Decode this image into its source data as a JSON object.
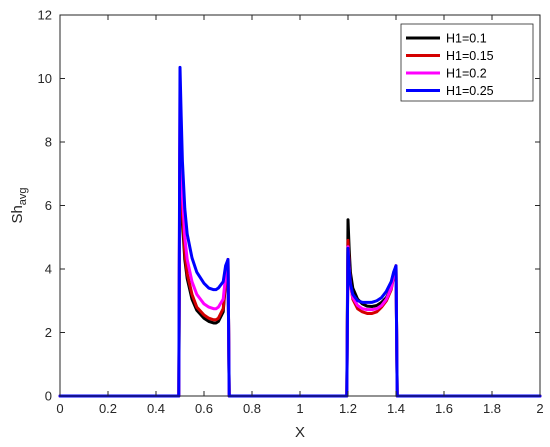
{
  "chart_data": {
    "type": "line",
    "title": "",
    "xlabel": "X",
    "ylabel": {
      "base": "Sh",
      "sub": "avg"
    },
    "xlim": [
      0,
      2
    ],
    "ylim": [
      0,
      12
    ],
    "xticks": [
      0,
      0.2,
      0.4,
      0.6,
      0.8,
      1,
      1.2,
      1.4,
      1.6,
      1.8,
      2
    ],
    "xtick_labels": [
      "0",
      "0.2",
      "0.4",
      "0.6",
      "0.8",
      "1",
      "1.2",
      "1.4",
      "1.6",
      "1.8",
      "2"
    ],
    "yticks": [
      0,
      2,
      4,
      6,
      8,
      10,
      12
    ],
    "ytick_labels": [
      "0",
      "2",
      "4",
      "6",
      "8",
      "10",
      "12"
    ],
    "grid": false,
    "legend_position": "top-right",
    "series": [
      {
        "name": "H1=0.1",
        "color": "#000000",
        "x": [
          0,
          0.49,
          0.495,
          0.5,
          0.505,
          0.51,
          0.52,
          0.53,
          0.55,
          0.57,
          0.6,
          0.62,
          0.64,
          0.65,
          0.66,
          0.68,
          0.69,
          0.7,
          0.705,
          0.71,
          1.19,
          1.195,
          1.2,
          1.205,
          1.21,
          1.22,
          1.24,
          1.26,
          1.28,
          1.3,
          1.32,
          1.34,
          1.36,
          1.38,
          1.39,
          1.4,
          1.405,
          1.41,
          2
        ],
        "y": [
          0,
          0,
          0,
          8.0,
          6.7,
          5.5,
          4.3,
          3.7,
          3.05,
          2.7,
          2.45,
          2.35,
          2.3,
          2.3,
          2.35,
          2.65,
          3.6,
          4.3,
          0,
          0,
          0,
          0,
          5.55,
          4.6,
          3.9,
          3.4,
          3.05,
          2.9,
          2.83,
          2.82,
          2.85,
          2.95,
          3.1,
          3.4,
          3.8,
          4.1,
          0,
          0,
          0
        ]
      },
      {
        "name": "H1=0.15",
        "color": "#d40000",
        "x": [
          0,
          0.49,
          0.495,
          0.5,
          0.505,
          0.51,
          0.52,
          0.53,
          0.55,
          0.57,
          0.6,
          0.62,
          0.64,
          0.65,
          0.66,
          0.68,
          0.69,
          0.7,
          0.705,
          0.71,
          1.19,
          1.195,
          1.2,
          1.205,
          1.21,
          1.22,
          1.24,
          1.26,
          1.28,
          1.3,
          1.32,
          1.34,
          1.36,
          1.38,
          1.39,
          1.4,
          1.405,
          1.41,
          2
        ],
        "y": [
          0,
          0,
          0,
          8.6,
          7.0,
          5.8,
          4.5,
          3.85,
          3.2,
          2.8,
          2.55,
          2.45,
          2.4,
          2.4,
          2.45,
          2.75,
          3.65,
          4.3,
          0,
          0,
          0,
          0,
          4.9,
          4.1,
          3.55,
          3.05,
          2.75,
          2.65,
          2.6,
          2.6,
          2.65,
          2.8,
          3.0,
          3.35,
          3.75,
          4.1,
          0,
          0,
          0
        ]
      },
      {
        "name": "H1=0.2",
        "color": "#ff00ff",
        "x": [
          0,
          0.49,
          0.495,
          0.5,
          0.505,
          0.51,
          0.52,
          0.53,
          0.55,
          0.57,
          0.6,
          0.62,
          0.64,
          0.65,
          0.66,
          0.68,
          0.69,
          0.7,
          0.705,
          0.71,
          1.19,
          1.195,
          1.2,
          1.205,
          1.21,
          1.22,
          1.24,
          1.26,
          1.28,
          1.3,
          1.32,
          1.34,
          1.36,
          1.38,
          1.39,
          1.4,
          1.405,
          1.41,
          2
        ],
        "y": [
          0,
          0,
          0,
          9.6,
          7.8,
          6.4,
          5.0,
          4.3,
          3.6,
          3.2,
          2.9,
          2.8,
          2.75,
          2.75,
          2.8,
          3.05,
          3.8,
          4.3,
          0,
          0,
          0,
          0,
          4.7,
          4.0,
          3.5,
          3.1,
          2.85,
          2.75,
          2.72,
          2.72,
          2.75,
          2.85,
          3.05,
          3.4,
          3.8,
          4.1,
          0,
          0,
          0
        ]
      },
      {
        "name": "H1=0.25",
        "color": "#0000ff",
        "x": [
          0,
          0.49,
          0.495,
          0.5,
          0.505,
          0.51,
          0.52,
          0.53,
          0.55,
          0.57,
          0.6,
          0.62,
          0.64,
          0.65,
          0.66,
          0.68,
          0.69,
          0.7,
          0.705,
          0.71,
          1.19,
          1.195,
          1.2,
          1.205,
          1.21,
          1.22,
          1.24,
          1.26,
          1.28,
          1.3,
          1.32,
          1.34,
          1.36,
          1.38,
          1.39,
          1.4,
          1.405,
          1.41,
          2
        ],
        "y": [
          0,
          0,
          0,
          10.35,
          8.8,
          7.4,
          5.9,
          5.1,
          4.35,
          3.9,
          3.55,
          3.4,
          3.35,
          3.35,
          3.4,
          3.6,
          4.1,
          4.3,
          0,
          0,
          0,
          0,
          4.65,
          4.0,
          3.55,
          3.2,
          3.0,
          2.95,
          2.95,
          2.95,
          3.0,
          3.1,
          3.3,
          3.6,
          3.9,
          4.1,
          0,
          0,
          0
        ]
      }
    ]
  }
}
